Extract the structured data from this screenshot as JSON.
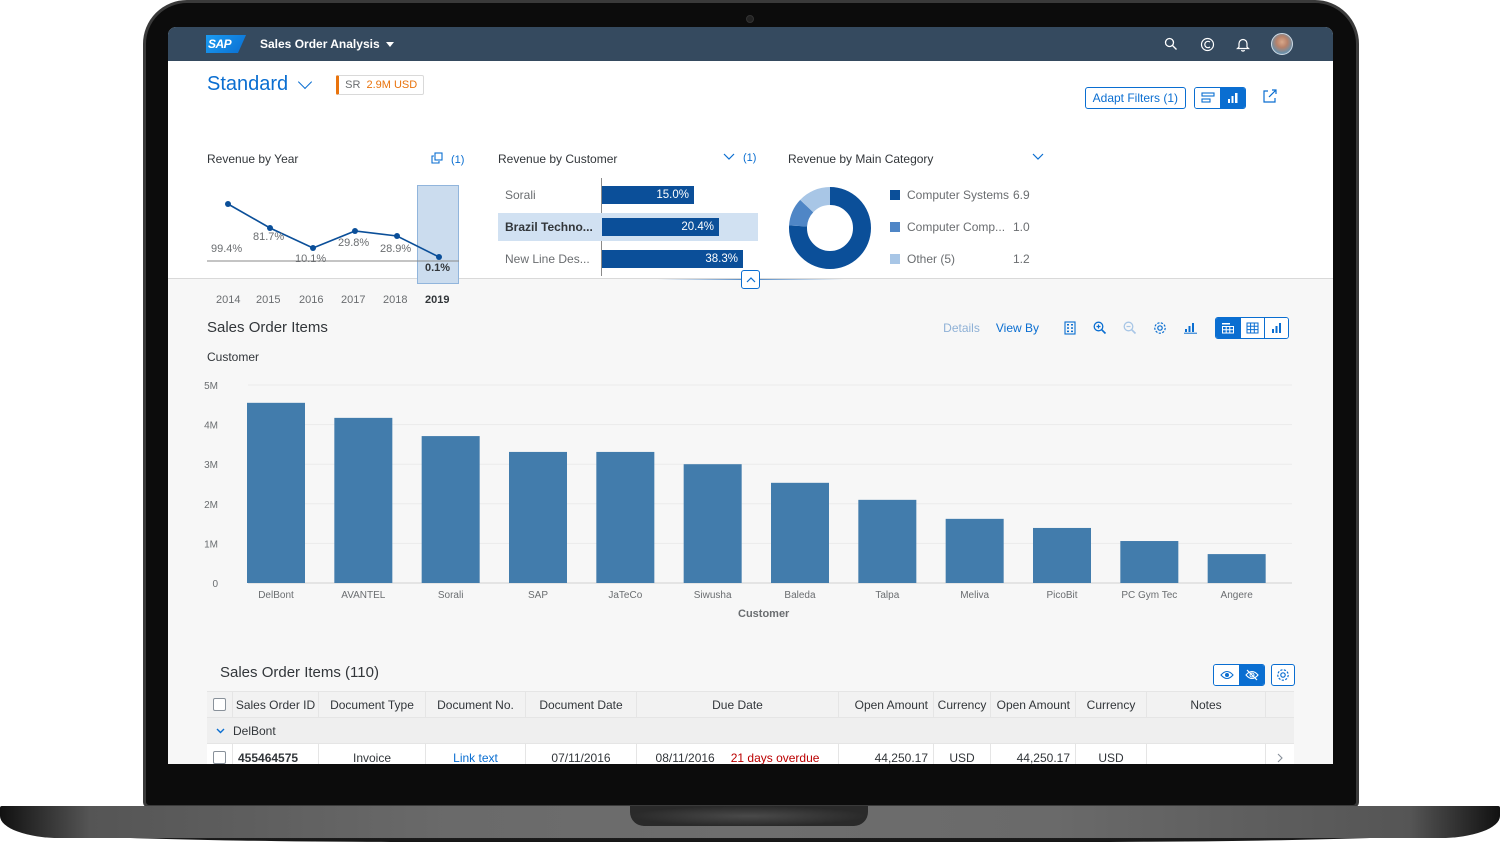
{
  "shell": {
    "logo": "SAP",
    "app_title": "Sales Order Analysis",
    "icons": [
      "search-icon",
      "copilot-icon",
      "notification-bell-icon",
      "user-avatar"
    ]
  },
  "header": {
    "variant": "Standard",
    "kpi": {
      "label": "SR",
      "value": "2.9M USD",
      "color": "#e9730c"
    },
    "adapt_filters_label": "Adapt Filters (1)",
    "view_toggle": [
      "header-list-view-icon",
      "header-chart-view-icon"
    ],
    "share_icon": "share-icon"
  },
  "cards": {
    "revenue_by_year": {
      "title": "Revenue by Year",
      "filter_count": "(1)"
    },
    "revenue_by_customer": {
      "title": "Revenue by Customer",
      "filter_count": "(1)",
      "rows": [
        {
          "name": "Sorali",
          "value": "15.0%",
          "selected": false
        },
        {
          "name": "Brazil Techno...",
          "value": "20.4%",
          "selected": true
        },
        {
          "name": "New Line Des...",
          "value": "38.3%",
          "selected": false
        }
      ]
    },
    "revenue_by_category": {
      "title": "Revenue by Main Category",
      "legend": [
        {
          "name": "Computer Systems",
          "value": "6.9",
          "color": "#0b4f99"
        },
        {
          "name": "Computer Comp...",
          "value": "1.0",
          "color": "#4f86c6"
        },
        {
          "name": "Other (5)",
          "value": "1.2",
          "color": "#a8c6e6"
        }
      ]
    }
  },
  "chart_section": {
    "title": "Sales Order Items",
    "details_label": "Details",
    "view_by_label": "View By",
    "dimension_label": "Customer"
  },
  "chart_data": [
    {
      "type": "line",
      "title": "Revenue by Year",
      "categories": [
        "2014",
        "2015",
        "2016",
        "2017",
        "2018",
        "2019"
      ],
      "labels": [
        "99.4%",
        "81.7%",
        "10.1%",
        "29.8%",
        "28.9%",
        "0.1%"
      ],
      "values": [
        99.4,
        81.7,
        10.1,
        29.8,
        28.9,
        0.1
      ],
      "selected": "2019"
    },
    {
      "type": "bar",
      "orientation": "horizontal",
      "title": "Revenue by Customer",
      "categories": [
        "Sorali",
        "Brazil Techno...",
        "New Line Des..."
      ],
      "values": [
        15.0,
        20.4,
        38.3
      ],
      "unit": "%"
    },
    {
      "type": "pie",
      "variant": "donut",
      "title": "Revenue by Main Category",
      "categories": [
        "Computer Systems",
        "Computer Comp...",
        "Other (5)"
      ],
      "values": [
        6.9,
        1.0,
        1.2
      ]
    },
    {
      "type": "bar",
      "title": "Customer",
      "xlabel": "Customer",
      "ylabel": "",
      "ylim": [
        0,
        5000000
      ],
      "yticks": [
        "0",
        "1M",
        "2M",
        "3M",
        "4M",
        "5M"
      ],
      "grid": true,
      "categories": [
        "DelBont",
        "AVANTEL",
        "Sorali",
        "SAP",
        "JaTeCo",
        "Siwusha",
        "Baleda",
        "Talpa",
        "Meliva",
        "PicoBit",
        "PC Gym Tec",
        "Angere"
      ],
      "values": [
        4550000,
        4170000,
        3710000,
        3310000,
        3310000,
        3000000,
        2530000,
        2100000,
        1620000,
        1390000,
        1060000,
        730000
      ],
      "color": "#427cac"
    }
  ],
  "table": {
    "title": "Sales Order Items (110)",
    "columns": [
      "Sales Order ID",
      "Document Type",
      "Document No.",
      "Document Date",
      "Due Date",
      "Open Amount",
      "Currency",
      "Open Amount",
      "Currency",
      "Notes"
    ],
    "group": "DelBont",
    "rows": [
      {
        "id": "455464575",
        "doc_type": "Invoice",
        "doc_no": "Link text",
        "doc_date": "07/11/2016",
        "due_date": "08/11/2016",
        "due_status": "21 days overdue",
        "open_amount_1": "44,250.17",
        "currency_1": "USD",
        "open_amount_2": "44,250.17",
        "currency_2": "USD",
        "notes": ""
      }
    ]
  }
}
